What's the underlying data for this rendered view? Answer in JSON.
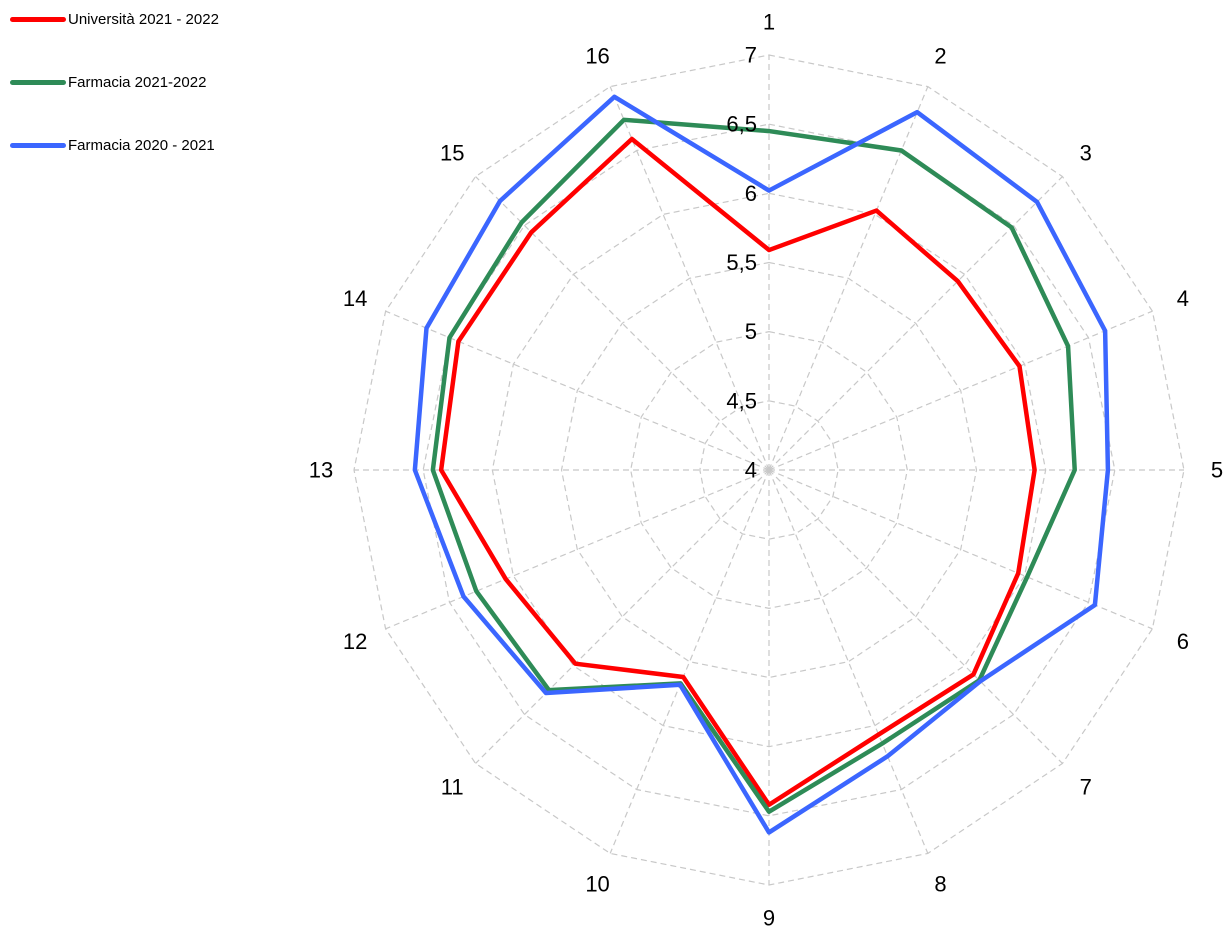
{
  "chart_data": {
    "type": "radar",
    "categories": [
      "1",
      "2",
      "3",
      "4",
      "5",
      "6",
      "7",
      "8",
      "9",
      "10",
      "11",
      "12",
      "13",
      "14",
      "15",
      "16"
    ],
    "rlim": [
      4,
      7
    ],
    "ticks": [
      4,
      4.5,
      5,
      5.5,
      6,
      6.5,
      7
    ],
    "tick_labels": [
      "4",
      "4,5",
      "5",
      "5,5",
      "6",
      "6,5",
      "7"
    ],
    "grid": true,
    "legend_position": "top-left",
    "series": [
      {
        "name": "Università 2021 - 2022",
        "color": "#ff0000",
        "values": [
          5.59,
          6.03,
          5.93,
          5.96,
          5.92,
          5.95,
          6.09,
          6.07,
          6.42,
          5.62,
          5.98,
          6.06,
          6.37,
          6.43,
          6.43,
          6.59
        ]
      },
      {
        "name": "Farmacia 2021-2022",
        "color": "#2e8b57",
        "values": [
          6.45,
          6.5,
          6.48,
          6.34,
          6.21,
          6.02,
          6.15,
          6.14,
          6.47,
          5.67,
          6.25,
          6.29,
          6.43,
          6.5,
          6.53,
          6.74
        ]
      },
      {
        "name": "Farmacia 2020 - 2021",
        "color": "#3b66ff",
        "values": [
          6.02,
          6.8,
          6.74,
          6.63,
          6.45,
          6.55,
          6.16,
          6.24,
          6.62,
          5.68,
          6.28,
          6.39,
          6.56,
          6.68,
          6.75,
          6.92
        ]
      }
    ]
  }
}
